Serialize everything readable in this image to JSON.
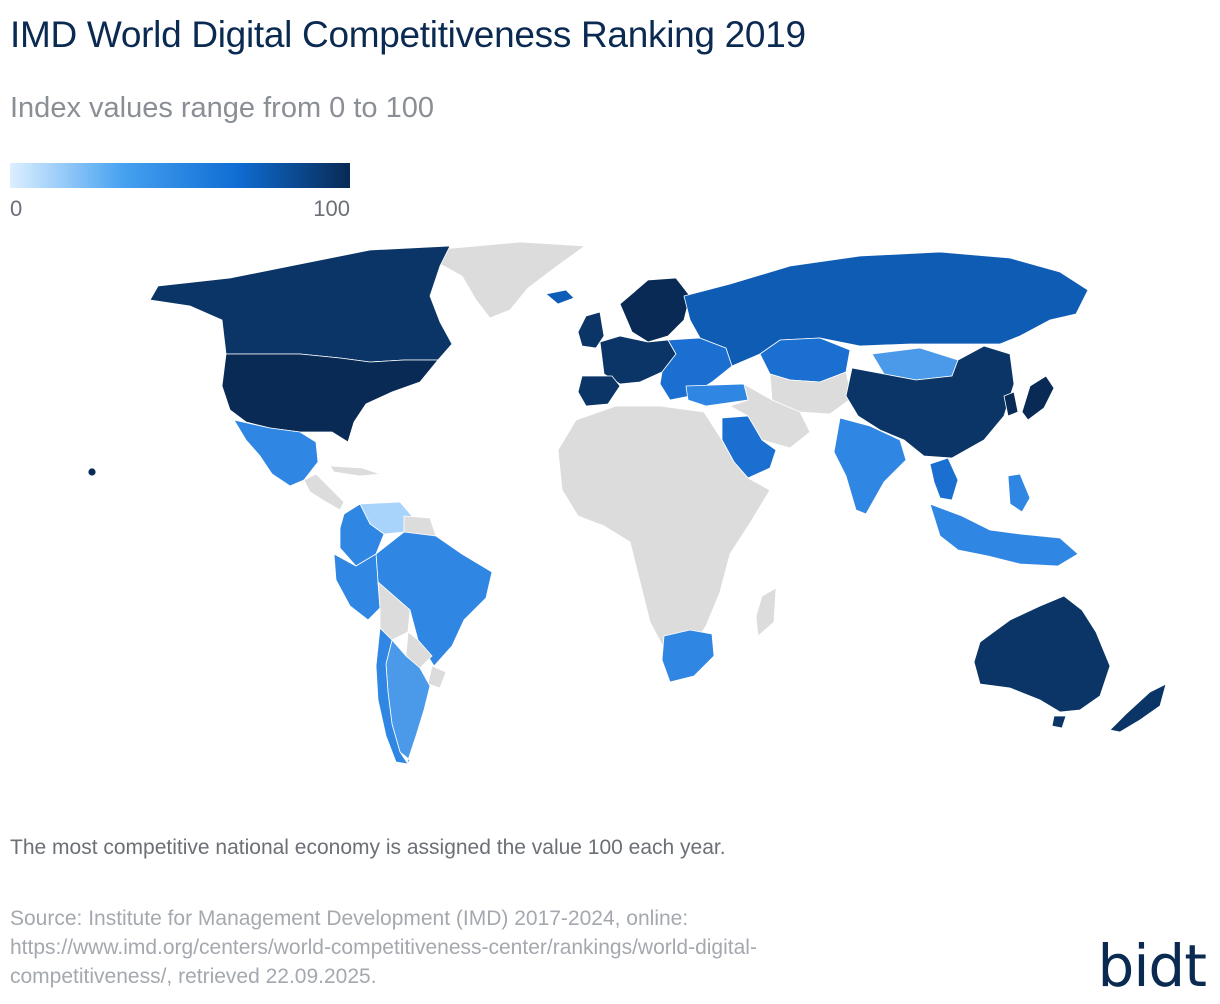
{
  "title": "IMD World Digital Competitiveness Ranking 2019",
  "subtitle": "Index values range from 0 to 100",
  "legend": {
    "min_label": "0",
    "max_label": "100",
    "color_stops": [
      "#ddefff",
      "#46a1f0",
      "#0f6dd4",
      "#082a55"
    ]
  },
  "map": {
    "no_data_color": "#dcdcdc",
    "region_colors": {
      "north_america": "#082a55",
      "canada": "#0b3566",
      "greenland": "#dcdcdc",
      "iceland": "#0d5db8",
      "mexico": "#2f86e3",
      "central_america": "#dcdcdc",
      "colombia": "#2f86e3",
      "venezuela": "#a8d3fb",
      "brazil": "#2f86e3",
      "peru": "#2f86e3",
      "bolivia": "#dcdcdc",
      "paraguay": "#dcdcdc",
      "chile": "#2f86e3",
      "argentina": "#4b9ae9",
      "uruguay": "#dcdcdc",
      "europe_west": "#0b3566",
      "scandinavia": "#082a55",
      "europe_east": "#1a6fd0",
      "turkey": "#2f86e3",
      "russia": "#0f5cb5",
      "kazakhstan": "#1a6fd0",
      "mongolia": "#4b9ae9",
      "china": "#0b3566",
      "korea_japan": "#082a55",
      "saudi_arabia": "#1a6fd0",
      "india": "#2f86e3",
      "thailand": "#1a6fd0",
      "southeast_asia": "#2f86e3",
      "australia": "#0b3566",
      "new_zealand": "#0b3566",
      "south_africa": "#2f86e3",
      "africa": "#dcdcdc",
      "middle_east_other": "#dcdcdc"
    }
  },
  "note": "The most competitive national economy is assigned the value 100 each year.",
  "source_lines": [
    "Source: Institute for Management Development (IMD) 2017-2024, online:",
    "https://www.imd.org/centers/world-competitiveness-center/rankings/world-digital-",
    "competitiveness/, retrieved 22.09.2025."
  ],
  "logo": "bidt"
}
